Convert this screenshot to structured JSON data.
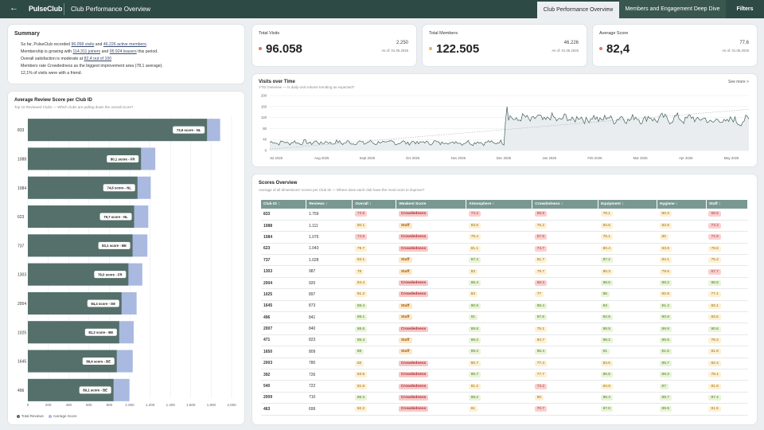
{
  "header": {
    "back_icon": "arrow-left-icon",
    "brand": "PulseClub",
    "title": "Club Performance Overview",
    "tabs": [
      "Club Performance Overview",
      "Members and Engagement Deep Dive"
    ],
    "filters_label": "Filters"
  },
  "summary": {
    "title": "Summary",
    "lines": [
      {
        "pre": "So far, PulseClub recorded ",
        "a": "96.058 visits",
        "mid": " and ",
        "b": "46.226 active members",
        "post": "."
      },
      {
        "pre": "Membership is growing with ",
        "a": "114.311 joiners",
        "mid": " and ",
        "b": "95.924 leavers",
        "post": " this period."
      },
      {
        "pre": "Overall satisfaction is moderate at ",
        "a": "82,4 out of 100",
        "mid": "",
        "b": "",
        "post": ""
      },
      {
        "pre": "Members rate Crowdedness as the biggest improvement area (78,1 average).",
        "a": "",
        "mid": "",
        "b": "",
        "post": ""
      },
      {
        "pre": "12,1% of visits were with a friend.",
        "a": "",
        "mid": "",
        "b": "",
        "post": ""
      }
    ]
  },
  "kpis": [
    {
      "label": "Total Visits",
      "value": "96.058",
      "compare": "2.250",
      "asof": "As of: 01.05.2026",
      "color": "#e07a5f"
    },
    {
      "label": "Total Members",
      "value": "122.505",
      "compare": "46.226",
      "asof": "As of: 01.05.2026",
      "color": "#e6b35e"
    },
    {
      "label": "Average Score",
      "value": "82,4",
      "compare": "77,6",
      "asof": "As of: 01.05.2026",
      "color": "#e07a5f"
    }
  ],
  "bar_chart": {
    "title": "Average Review Score per Club ID",
    "subtitle": "Top 10 Reviewed Clubs — Which clubs are pulling down the overall score?",
    "legend": [
      "Total Reviews",
      "Average Score"
    ],
    "legend_colors": [
      "#55706a",
      "#a9b9e0"
    ],
    "x_ticks": [
      "0",
      "200",
      "400",
      "600",
      "800",
      "1.000",
      "1.200",
      "1.400",
      "1.600",
      "1.800",
      "2.000"
    ]
  },
  "chart_data": [
    {
      "type": "bar",
      "title": "Average Review Score per Club ID",
      "categories": [
        "833",
        "1088",
        "1084",
        "623",
        "737",
        "1303",
        "2004",
        "1025",
        "1645",
        "496"
      ],
      "series": [
        {
          "name": "Total Reviews",
          "values": [
            1759,
            1111,
            1076,
            1043,
            1028,
            987,
            920,
            897,
            873,
            841
          ]
        },
        {
          "name": "Average Score",
          "values": [
            73.6,
            80.1,
            74.6,
            79.7,
            83.1,
            78.0,
            84.4,
            81.2,
            89.4,
            89.1
          ]
        }
      ],
      "labels": [
        "73,6 score - NL",
        "80,1 score - FR",
        "74,6 score - NL",
        "79,7 score - NL",
        "83,1 score - BE",
        "78,0 score - FR",
        "84,4 score - DE",
        "81,2 score - BE",
        "89,4 score - BE",
        "89,1 score - BE"
      ],
      "xlim": [
        0,
        2000
      ]
    },
    {
      "type": "line",
      "title": "Visits over Time",
      "subtitle": "YTD Overview — Is daily visit volume trending as expected?",
      "x_labels": [
        "Jul 2025",
        "Aug 2025",
        "Sept 2025",
        "Oct 2025",
        "Nov 2025",
        "Dec 2025",
        "Jan 2026",
        "Feb 2026",
        "Mar 2026",
        "Apr 2026",
        "May 2026"
      ],
      "y_ticks": [
        0,
        40,
        80,
        120,
        160,
        200
      ],
      "ylim": [
        0,
        200
      ],
      "baseline": 30,
      "step_up": 120,
      "step_point": "Dec 2025",
      "trend": [
        5,
        150
      ]
    }
  ],
  "line_chart": {
    "title": "Visits over Time",
    "subtitle": "YTD Overview — Is daily visit volume trending as expected?",
    "see_more": "See more >",
    "x_labels": [
      "Jul 2025",
      "Aug 2025",
      "Sept 2025",
      "Oct 2025",
      "Nov 2025",
      "Dec 2025",
      "Jan 2026",
      "Feb 2026",
      "Mar 2026",
      "Apr 2026",
      "May 2026"
    ],
    "y_ticks": [
      "0",
      "40",
      "80",
      "120",
      "160",
      "200"
    ]
  },
  "table": {
    "title": "Scores Overview",
    "subtitle": "Average of all dimensions' scores per Club ID — Where does each club have the most room to improve?",
    "headers": [
      "Club ID",
      "Reviews",
      "Overall",
      "Weakest Score",
      "Atmosphere",
      "Crowdedness",
      "Equipment",
      "Hygiene",
      "Staff"
    ],
    "rows": [
      [
        "833",
        "1.759",
        "73.6",
        "Crowdedness",
        "74.3",
        "65.8",
        "78.1",
        "80.3",
        "69.5"
      ],
      [
        "1088",
        "1.111",
        "80.1",
        "Staff",
        "83.6",
        "76.2",
        "84.6",
        "82.8",
        "73.3"
      ],
      [
        "1084",
        "1.076",
        "74.6",
        "Crowdedness",
        "76.4",
        "67.8",
        "76.1",
        "80",
        "72.9"
      ],
      [
        "623",
        "1.043",
        "79.7",
        "Crowdedness",
        "81.1",
        "74.7",
        "80.4",
        "83.9",
        "78.6"
      ],
      [
        "737",
        "1.028",
        "83.1",
        "Staff",
        "87.4",
        "81.7",
        "87.2",
        "84.1",
        "75.2"
      ],
      [
        "1303",
        "987",
        "78",
        "Staff",
        "83",
        "79.7",
        "80.3",
        "79.5",
        "67.7"
      ],
      [
        "2004",
        "920",
        "84.4",
        "Crowdedness",
        "86.4",
        "69.3",
        "89.5",
        "88.2",
        "88.6"
      ],
      [
        "1025",
        "897",
        "81.2",
        "Crowdedness",
        "83",
        "77",
        "86",
        "82.9",
        "77.1"
      ],
      [
        "1645",
        "873",
        "89.4",
        "Staff",
        "90.9",
        "88.4",
        "93",
        "91.4",
        "83.1"
      ],
      [
        "496",
        "841",
        "89.1",
        "Staff",
        "91",
        "87.6",
        "92.8",
        "90.8",
        "83.5"
      ],
      [
        "2007",
        "840",
        "86.6",
        "Crowdedness",
        "89.8",
        "75.1",
        "88.5",
        "88.9",
        "90.6"
      ],
      [
        "471",
        "823",
        "85.4",
        "Staff",
        "88.2",
        "84.7",
        "89.2",
        "86.5",
        "78.2"
      ],
      [
        "1650",
        "809",
        "88",
        "Staff",
        "89.2",
        "86.4",
        "91",
        "91.5",
        "81.8"
      ],
      [
        "2003",
        "780",
        "82",
        "Crowdedness",
        "80.7",
        "77.4",
        "84.6",
        "85.7",
        "82.4"
      ],
      [
        "392",
        "726",
        "83.5",
        "Crowdedness",
        "85.7",
        "77.7",
        "86.5",
        "89.3",
        "78.1"
      ],
      [
        "540",
        "722",
        "81.6",
        "Crowdedness",
        "81.2",
        "73.2",
        "84.8",
        "87",
        "81.8"
      ],
      [
        "2009",
        "710",
        "86.3",
        "Crowdedness",
        "88.2",
        "80",
        "86.4",
        "89.7",
        "87.4"
      ],
      [
        "463",
        "699",
        "82.2",
        "Crowdedness",
        "81",
        "70.7",
        "87.8",
        "89.9",
        "81.5"
      ]
    ]
  }
}
